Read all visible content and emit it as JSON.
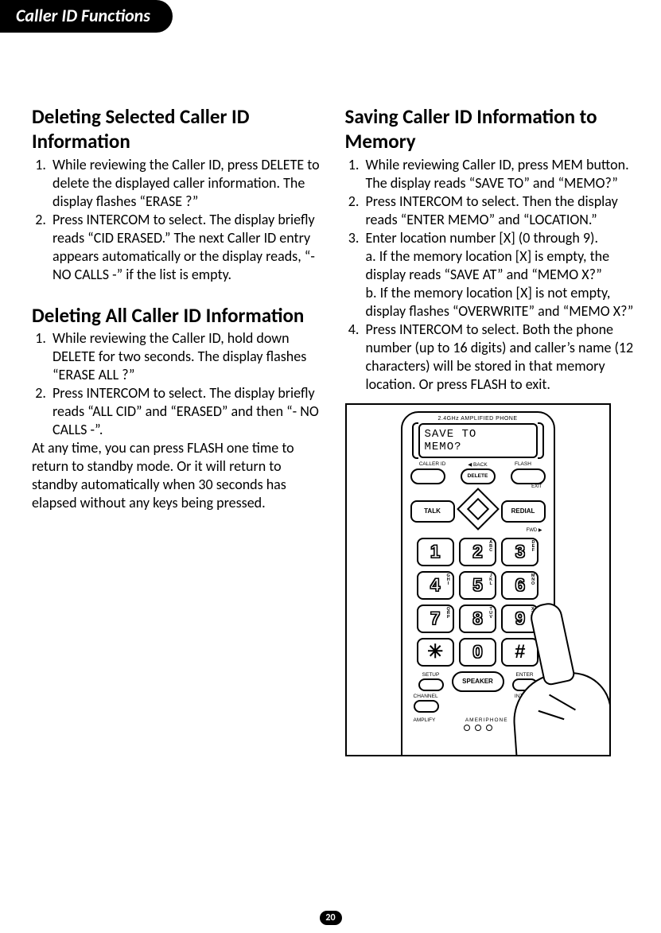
{
  "tab_title": "Caller ID Functions",
  "page_number": "20",
  "left_col": {
    "h1": "Deleting Selected Caller ID Information",
    "list1": [
      "While reviewing the Caller ID, press DELETE to delete the displayed caller information. The display flashes “ERASE ?”",
      "Press INTERCOM to select. The display briefly reads “CID ERASED.” The next Caller ID entry appears automatically or the display reads, “- NO CALLS -” if the list is empty."
    ],
    "h2": "Deleting All Caller ID Information",
    "list2": [
      "While reviewing the Caller ID, hold down DELETE for two seconds. The display flashes “ERASE ALL ?”",
      "Press INTERCOM to select. The display briefly reads “ALL CID” and “ERASED” and then “-  NO CALLS -”."
    ],
    "tail": "At any time, you can press FLASH one time to return to standby mode. Or it will return to standby automatically when 30 seconds has elapsed without any keys being pressed."
  },
  "right_col": {
    "h1": "Saving Caller ID Information to Memory",
    "item1": "While reviewing Caller ID, press MEM button. The display reads “SAVE TO” and “MEMO?”",
    "item2": "Press INTERCOM to select. Then the display reads “ENTER MEMO” and “LOCATION.”",
    "item3_lead": "Enter location number [X] (0 through 9).",
    "item3_a": "a. If the memory location [X] is empty, the display reads “SAVE AT” and “MEMO X?”",
    "item3_b": "b. If the memory location [X] is not empty, display flashes “OVERWRITE” and “MEMO X?”",
    "item4": "Press INTERCOM to select. Both the phone number (up to 16 digits) and caller’s name (12 characters) will be stored in that memory location. Or press FLASH to exit."
  },
  "phone": {
    "top_label": "2.4GHz AMPLIFIED PHONE",
    "screen_line1": "SAVE TO",
    "screen_line2": "MEMO?",
    "row1": {
      "l": "CALLER ID",
      "c": "◀ BACK",
      "r": "FLASH"
    },
    "delete": "DELETE",
    "exit": "EXIT",
    "talk": "TALK",
    "redial": "REDIAL",
    "fwd": "FWD ▶",
    "keys": [
      {
        "n": "1",
        "l": ""
      },
      {
        "n": "2",
        "l": "A\nB\nC"
      },
      {
        "n": "3",
        "l": "D\nE\nF"
      },
      {
        "n": "4",
        "l": "G\nH\nI"
      },
      {
        "n": "5",
        "l": "J\nK\nL"
      },
      {
        "n": "6",
        "l": "M\nN\nO"
      },
      {
        "n": "7",
        "l": "Q\nR\nP"
      },
      {
        "n": "8",
        "l": "T\nU\nV"
      },
      {
        "n": "9",
        "l": "X\nY\nW\nZ"
      },
      {
        "n": "✳",
        "l": ""
      },
      {
        "n": "0",
        "l": ""
      },
      {
        "n": "#",
        "l": ""
      }
    ],
    "setup": "SETUP",
    "enter": "ENTER",
    "speaker": "SPEAKER",
    "channel": "CHANNEL",
    "intercom": "INTERCOM",
    "amplify": "AMPLIFY",
    "brand": "AMERIPHONE",
    "mem": "M"
  }
}
